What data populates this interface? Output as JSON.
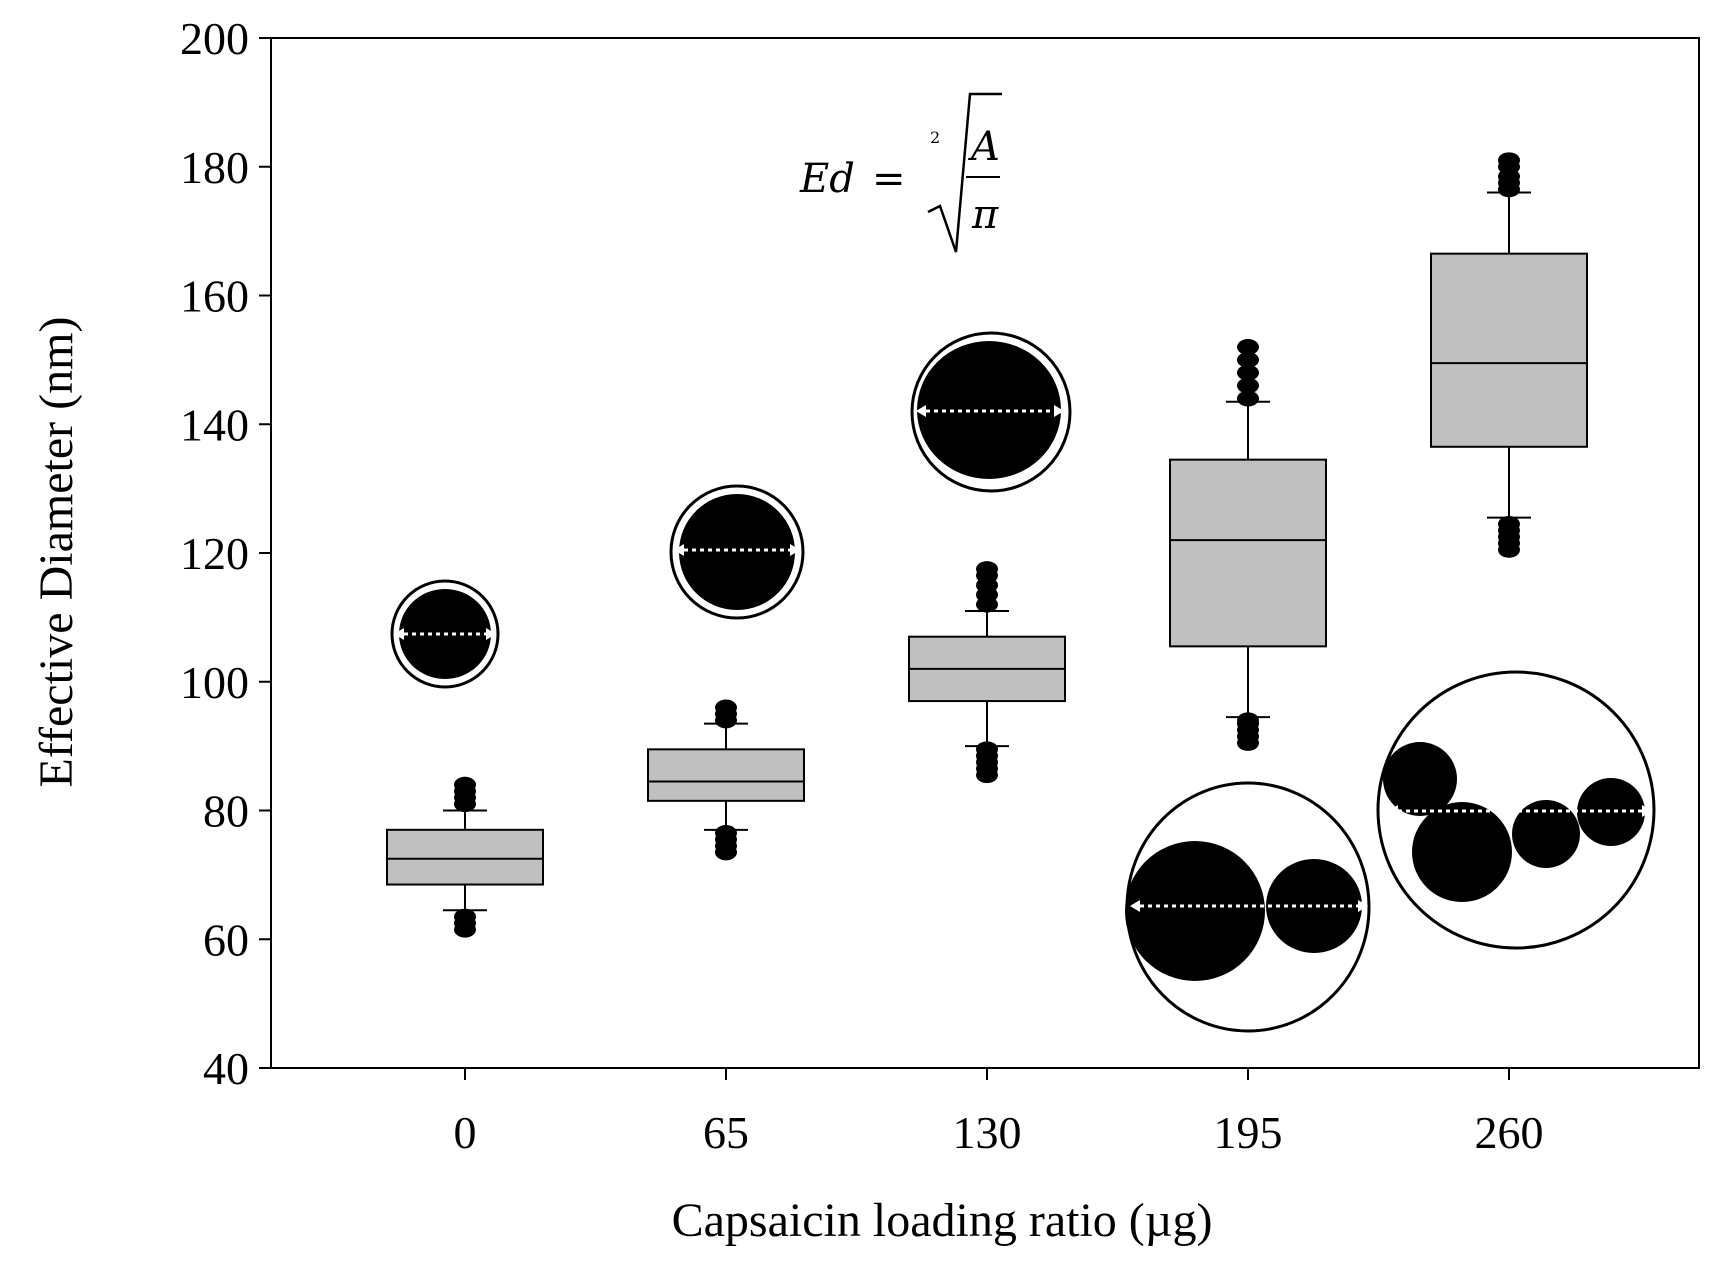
{
  "chart_data": {
    "type": "box",
    "title": "",
    "xlabel": "Capsaicin loading ratio (µg)",
    "ylabel": "Effective Diameter (nm)",
    "ylim": [
      40,
      200
    ],
    "yticks": [
      40,
      60,
      80,
      100,
      120,
      140,
      160,
      180,
      200
    ],
    "categories": [
      "0",
      "65",
      "130",
      "195",
      "260"
    ],
    "boxes": [
      {
        "category": "0",
        "whisker_low": 64.5,
        "q1": 68.5,
        "median": 72.5,
        "q3": 77.0,
        "whisker_high": 80.0,
        "outliers_low": [
          61.5,
          62.5,
          63.5
        ],
        "outliers_high": [
          81.0,
          82.0,
          83.0,
          84.0
        ]
      },
      {
        "category": "65",
        "whisker_low": 77.0,
        "q1": 81.5,
        "median": 84.5,
        "q3": 89.5,
        "whisker_high": 93.5,
        "outliers_low": [
          73.5,
          74.5,
          75.5,
          76.5
        ],
        "outliers_high": [
          94.0,
          95.0,
          96.0
        ]
      },
      {
        "category": "130",
        "whisker_low": 90.0,
        "q1": 97.0,
        "median": 102.0,
        "q3": 107.0,
        "whisker_high": 111.0,
        "outliers_low": [
          85.5,
          86.5,
          87.5,
          88.5,
          89.5
        ],
        "outliers_high": [
          112.0,
          113.5,
          115.0,
          116.5,
          117.5
        ]
      },
      {
        "category": "195",
        "whisker_low": 94.5,
        "q1": 105.5,
        "median": 122.0,
        "q3": 134.5,
        "whisker_high": 143.5,
        "outliers_low": [
          90.5,
          91.5,
          92.5,
          93.5,
          94.0
        ],
        "outliers_high": [
          144.0,
          146.0,
          148.0,
          150.0,
          152.0
        ]
      },
      {
        "category": "260",
        "whisker_low": 125.5,
        "q1": 136.5,
        "median": 149.5,
        "q3": 166.5,
        "whisker_high": 176.0,
        "outliers_low": [
          120.5,
          121.5,
          122.5,
          123.5,
          124.5
        ],
        "outliers_high": [
          176.5,
          177.5,
          178.5,
          180.0,
          181.0
        ]
      }
    ],
    "annotation_formula": {
      "lhs": "Ed",
      "equals": "=",
      "root_index": "2",
      "numerator": "A",
      "denominator": "π"
    },
    "box_fill": "#c0c0c0",
    "particle_insets": [
      {
        "category": "0",
        "description": "single-particle"
      },
      {
        "category": "65",
        "description": "single-particle"
      },
      {
        "category": "130",
        "description": "single-particle"
      },
      {
        "category": "195",
        "description": "two-particle-aggregate"
      },
      {
        "category": "260",
        "description": "multi-particle-aggregate"
      }
    ]
  }
}
